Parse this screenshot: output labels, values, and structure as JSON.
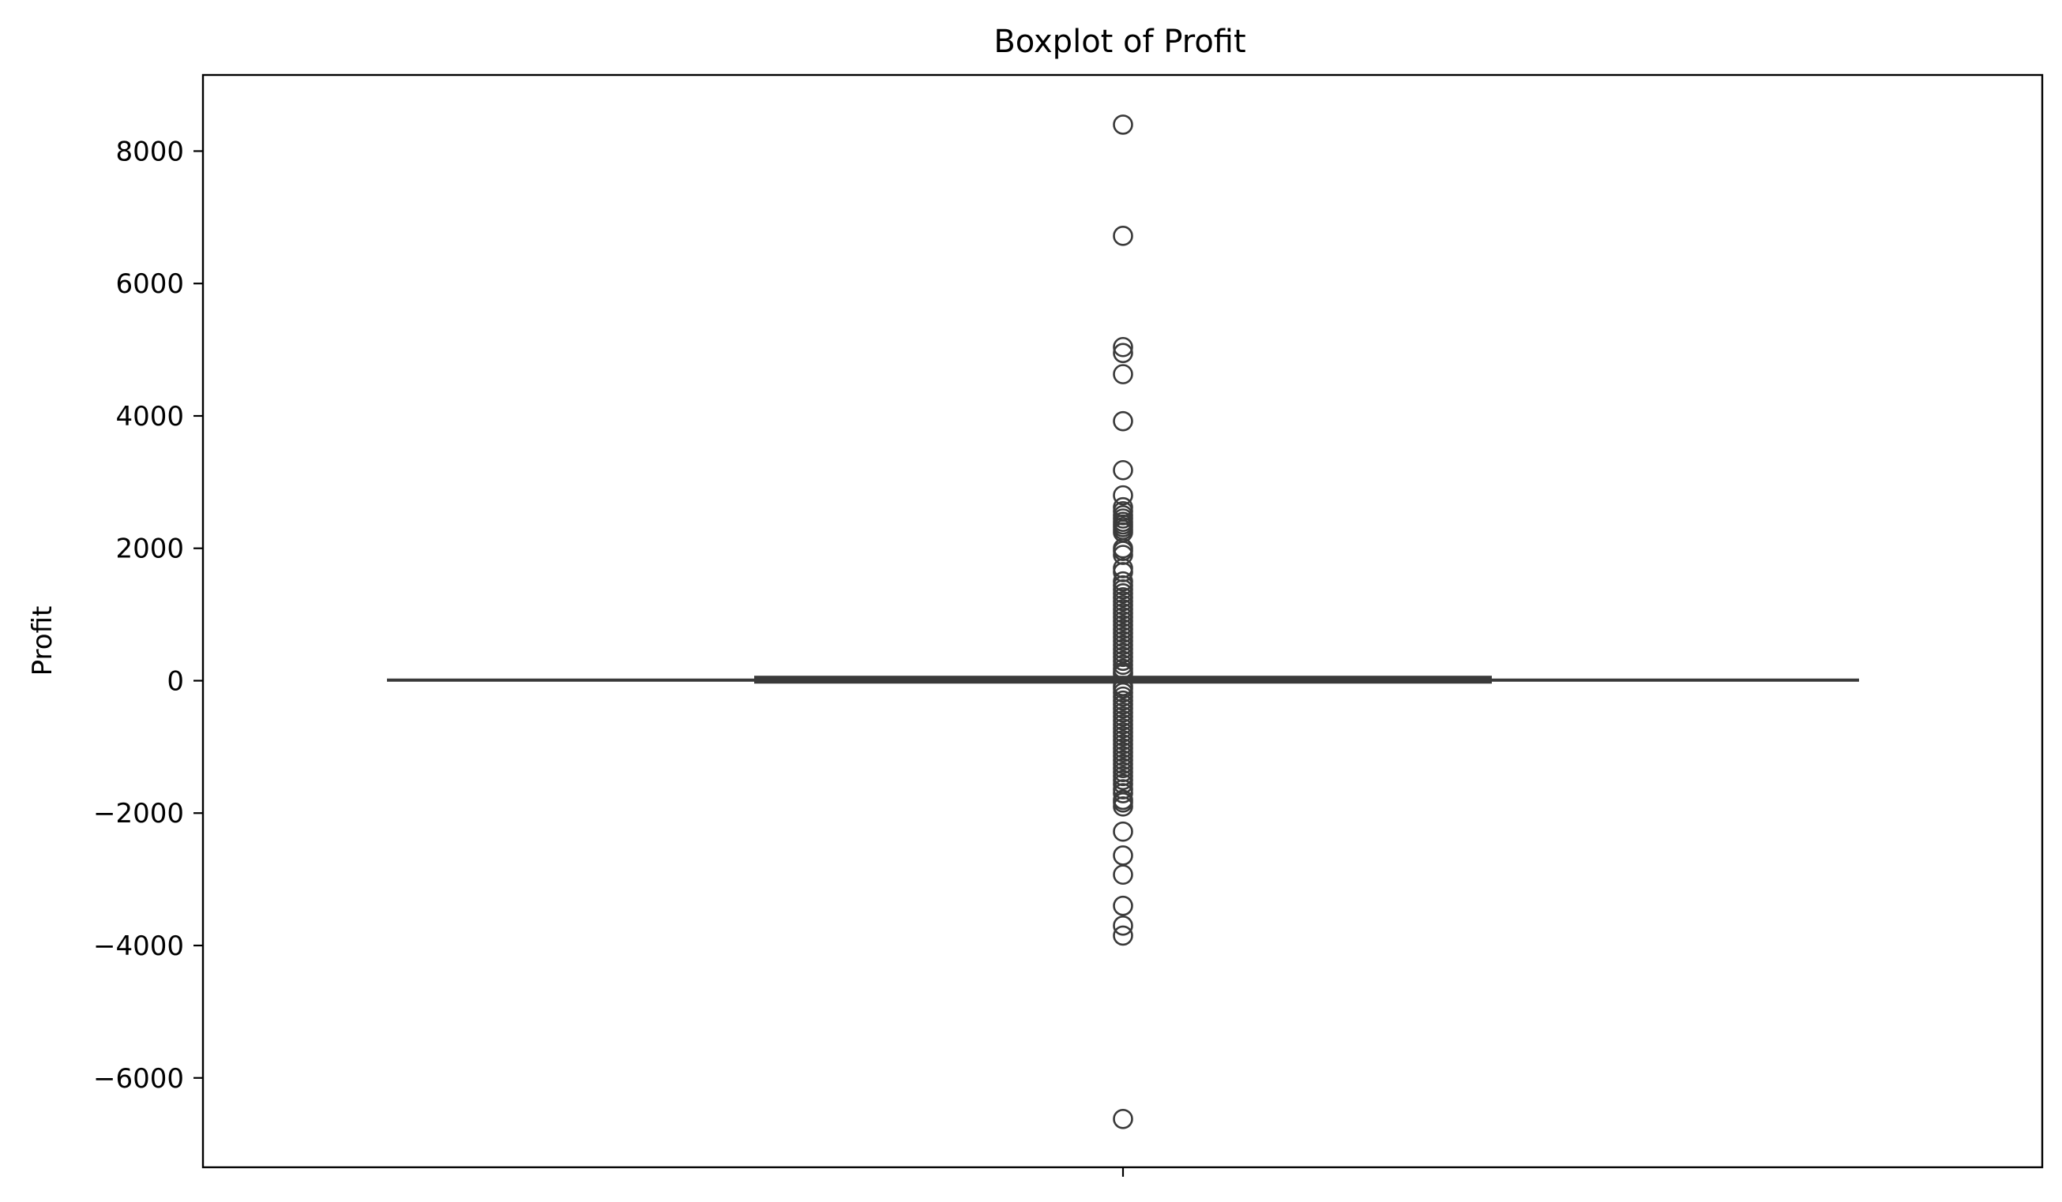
{
  "chart_data": {
    "type": "box",
    "title": "Boxplot of Profit",
    "ylabel": "Profit",
    "xlabel": "",
    "ylim": [
      -7350,
      9150
    ],
    "yticks": [
      8000,
      6000,
      4000,
      2000,
      0,
      -2000,
      -4000,
      -6000
    ],
    "ytick_labels": [
      "8000",
      "6000",
      "4000",
      "2000",
      "0",
      "−2000",
      "−4000",
      "−6000"
    ],
    "grid": false,
    "colors": {
      "box": "#3a3a3a",
      "outlier_edge": "#3a3a3a"
    },
    "series": [
      {
        "box": {
          "whisker_low": -39,
          "q1": 2,
          "median": 9,
          "q3": 29,
          "whisker_high": 70
        },
        "outliers": [
          8400,
          6720,
          5040,
          4950,
          4630,
          3920,
          3180,
          2800,
          2620,
          2560,
          2500,
          2450,
          2400,
          2360,
          2320,
          2280,
          2240,
          2000,
          1960,
          1900,
          1700,
          1640,
          1500,
          1440,
          1380,
          1320,
          1260,
          1200,
          1140,
          1080,
          1020,
          960,
          900,
          840,
          780,
          720,
          660,
          600,
          540,
          480,
          420,
          360,
          300,
          240,
          180,
          130,
          100,
          -80,
          -120,
          -180,
          -240,
          -300,
          -360,
          -420,
          -480,
          -540,
          -600,
          -660,
          -720,
          -780,
          -840,
          -900,
          -960,
          -1020,
          -1080,
          -1140,
          -1200,
          -1260,
          -1320,
          -1380,
          -1440,
          -1500,
          -1560,
          -1640,
          -1700,
          -1800,
          -1840,
          -1900,
          -2280,
          -2640,
          -2930,
          -3400,
          -3700,
          -3850,
          -6620
        ]
      }
    ]
  }
}
